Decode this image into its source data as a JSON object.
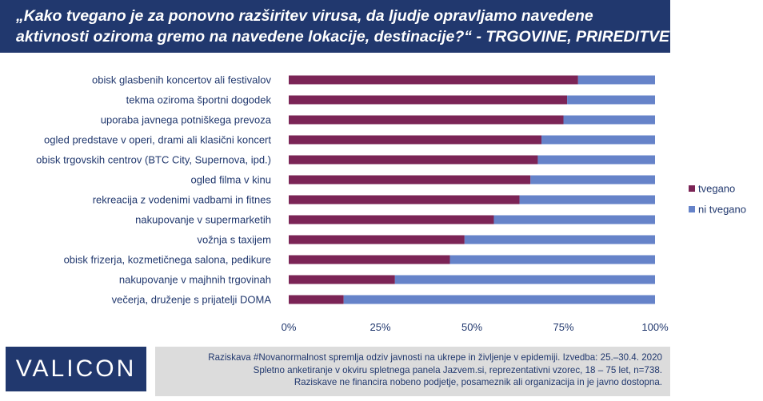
{
  "title": {
    "line1": "„Kako tvegano je za ponovno razširitev virusa, da ljudje opravljamo navedene",
    "line2": "aktivnosti oziroma gremo na navedene lokacije, destinacije?“ - TRGOVINE, PRIREDITVE"
  },
  "logo": "VALICON",
  "footnote": {
    "line1": "Raziskava #Novanormalnost spremlja odziv javnosti na ukrepe in življenje v epidemiji. Izvedba: 25.–30.4. 2020",
    "line2": "Spletno anketiranje v okviru spletnega panela Jazvem.si, reprezentativni vzorec, 18 – 75 let, n=738.",
    "line3": "Raziskave ne financira nobeno podjetje, posameznik ali organizacija in je javno dostopna."
  },
  "chart_data": {
    "type": "bar",
    "orientation": "horizontal",
    "stacked": "percent",
    "categories": [
      "obisk glasbenih koncertov ali festivalov",
      "tekma oziroma športni dogodek",
      "uporaba javnega potniškega prevoza",
      "ogled predstave v operi, drami ali klasični koncert",
      "obisk trgovskih centrov (BTC City, Supernova, ipd.)",
      "ogled filma v kinu",
      "rekreacija z vodenimi vadbami in fitnes",
      "nakupovanje v supermarketih",
      "vožnja s taxijem",
      "obisk frizerja, kozmetičnega salona, pedikure",
      "nakupovanje v majhnih trgovinah",
      "večerja, druženje s prijatelji DOMA"
    ],
    "series": [
      {
        "name": "tvegano",
        "color": "#7b2456",
        "values": [
          79,
          76,
          75,
          69,
          68,
          66,
          63,
          56,
          48,
          44,
          29,
          15
        ]
      },
      {
        "name": "ni tvegano",
        "color": "#6683c9",
        "values": [
          21,
          24,
          25,
          31,
          32,
          34,
          37,
          44,
          52,
          56,
          71,
          85
        ]
      }
    ],
    "xlim": [
      0,
      100
    ],
    "xticks": [
      "0%",
      "25%",
      "50%",
      "75%",
      "100%"
    ],
    "legend": "right"
  }
}
